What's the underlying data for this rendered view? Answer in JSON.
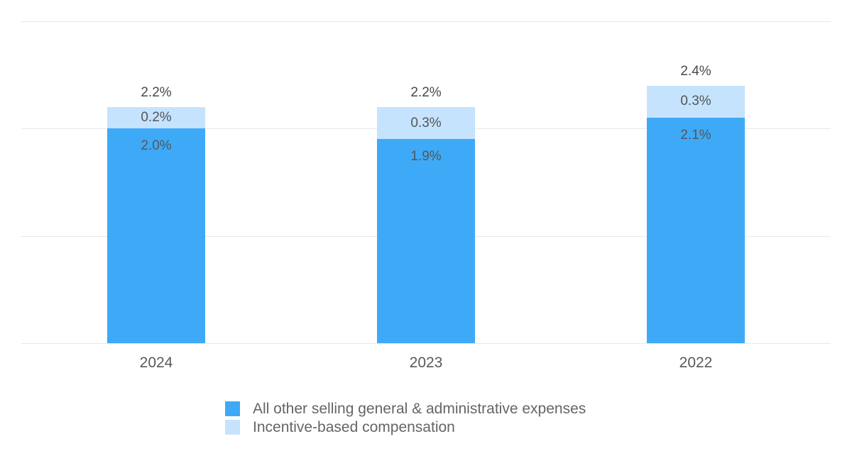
{
  "chart_data": {
    "type": "bar",
    "stacked": true,
    "title": "",
    "categories": [
      "2024",
      "2023",
      "2022"
    ],
    "series": [
      {
        "name": "All other selling general & administrative expenses",
        "color": "#3EAAF7",
        "values": [
          2.0,
          1.9,
          2.1
        ],
        "labels": [
          "2.0%",
          "1.9%",
          "2.1%"
        ]
      },
      {
        "name": "Incentive-based compensation",
        "color": "#C5E3FC",
        "values": [
          0.2,
          0.3,
          0.3
        ],
        "labels": [
          "0.2%",
          "0.3%",
          "0.3%"
        ]
      }
    ],
    "totals": [
      2.2,
      2.2,
      2.4
    ],
    "total_labels": [
      "2.2%",
      "2.2%",
      "2.4%"
    ],
    "xlabel": "",
    "ylabel": "",
    "ylim": [
      0,
      3
    ],
    "gridlines": [
      0,
      1,
      2,
      3
    ],
    "grid_on": true,
    "legend_position": "bottom",
    "colors": {
      "background": "#ffffff",
      "grid": "#e8e8e8",
      "total_label": "#47494c",
      "segment_label": "#53565a",
      "axis_label": "#58595b",
      "legend_label": "#636567"
    }
  }
}
